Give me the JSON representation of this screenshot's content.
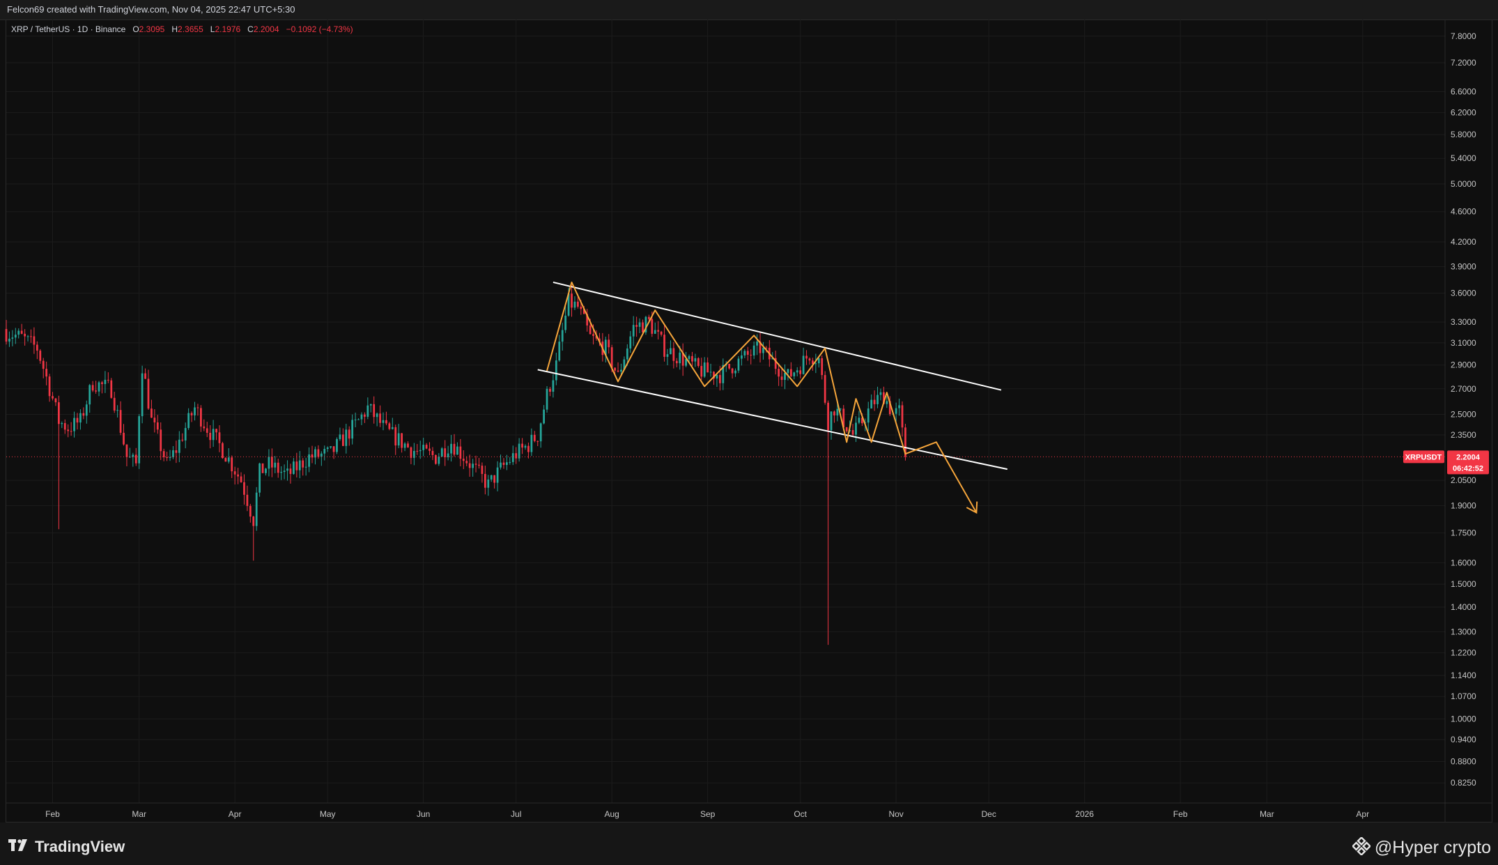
{
  "header": {
    "title": "Felcon69 created with TradingView.com, Nov 04, 2025 22:47 UTC+5:30"
  },
  "legend": {
    "symbol": "XRP / TetherUS · 1D · Binance",
    "o_label": "O",
    "o_value": "2.3095",
    "h_label": "H",
    "h_value": "2.3655",
    "l_label": "L",
    "l_value": "2.1976",
    "c_label": "C",
    "c_value": "2.2004",
    "change": "−0.1092 (−4.73%)"
  },
  "price_tag": {
    "symbol": "XRPUSDT",
    "price": "2.2004",
    "countdown": "06:42:52"
  },
  "footer": {
    "brand": "TradingView",
    "watermark": "@Hyper crypto"
  },
  "colors": {
    "up": "#26a69a",
    "down": "#f23645",
    "pattern": "#f7a63b",
    "channel": "#ffffff",
    "background": "#0f0f0f"
  },
  "icons": {
    "brand_icon": "tradingview-logo-icon",
    "watermark_icon": "binance-diamond-icon"
  },
  "chart_data": {
    "type": "candlestick",
    "y_scale": "log",
    "ylim": [
      0.78,
      8.2
    ],
    "yticks": [
      7.8,
      7.2,
      6.6,
      6.2,
      5.8,
      5.4,
      5.0,
      4.6,
      4.2,
      3.9,
      3.6,
      3.3,
      3.1,
      2.9,
      2.7,
      2.5,
      2.35,
      2.05,
      1.9,
      1.75,
      1.6,
      1.5,
      1.4,
      1.3,
      1.22,
      1.14,
      1.07,
      1.0,
      0.94,
      0.88,
      0.825
    ],
    "ytick_labels": [
      "7.8000",
      "7.2000",
      "6.6000",
      "6.2000",
      "5.8000",
      "5.4000",
      "5.0000",
      "4.6000",
      "4.2000",
      "3.9000",
      "3.6000",
      "3.3000",
      "3.1000",
      "2.9000",
      "2.7000",
      "2.5000",
      "2.3500",
      "2.0500",
      "1.9000",
      "1.7500",
      "1.6000",
      "1.5000",
      "1.4000",
      "1.3000",
      "1.2200",
      "1.1400",
      "1.0700",
      "1.0000",
      "0.9400",
      "0.8800",
      "0.8250"
    ],
    "xticks": [
      "2025-02-01",
      "2025-03-01",
      "2025-04-01",
      "2025-05-01",
      "2025-06-01",
      "2025-07-01",
      "2025-08-01",
      "2025-09-01",
      "2025-10-01",
      "2025-11-01",
      "2025-12-01",
      "2026-01-01",
      "2026-02-01",
      "2026-03-01",
      "2026-04-01"
    ],
    "xtick_labels": [
      "Feb",
      "Mar",
      "Apr",
      "May",
      "Jun",
      "Jul",
      "Aug",
      "Sep",
      "Oct",
      "Nov",
      "Dec",
      "2026",
      "Feb",
      "Mar",
      "Apr"
    ],
    "xlim": [
      "2025-01-17",
      "2026-04-20"
    ],
    "grid": true,
    "last_price": 2.2004,
    "anchors": [
      [
        "2025-01-17",
        3.2
      ],
      [
        "2025-01-22",
        3.15
      ],
      [
        "2025-01-27",
        3.05
      ],
      [
        "2025-02-03",
        2.45
      ],
      [
        "2025-02-06",
        2.4
      ],
      [
        "2025-02-10",
        2.45
      ],
      [
        "2025-02-14",
        2.75
      ],
      [
        "2025-02-20",
        2.7
      ],
      [
        "2025-02-25",
        2.2
      ],
      [
        "2025-02-28",
        2.15
      ],
      [
        "2025-03-02",
        2.9
      ],
      [
        "2025-03-05",
        2.45
      ],
      [
        "2025-03-10",
        2.15
      ],
      [
        "2025-03-13",
        2.25
      ],
      [
        "2025-03-19",
        2.55
      ],
      [
        "2025-03-23",
        2.4
      ],
      [
        "2025-03-28",
        2.25
      ],
      [
        "2025-04-03",
        2.05
      ],
      [
        "2025-04-07",
        1.82
      ],
      [
        "2025-04-09",
        2.1
      ],
      [
        "2025-04-12",
        2.15
      ],
      [
        "2025-04-18",
        2.08
      ],
      [
        "2025-04-25",
        2.2
      ],
      [
        "2025-05-02",
        2.22
      ],
      [
        "2025-05-11",
        2.45
      ],
      [
        "2025-05-14",
        2.55
      ],
      [
        "2025-05-20",
        2.38
      ],
      [
        "2025-05-28",
        2.25
      ],
      [
        "2025-06-05",
        2.2
      ],
      [
        "2025-06-10",
        2.3
      ],
      [
        "2025-06-15",
        2.18
      ],
      [
        "2025-06-22",
        2.02
      ],
      [
        "2025-06-26",
        2.12
      ],
      [
        "2025-07-01",
        2.22
      ],
      [
        "2025-07-05",
        2.28
      ],
      [
        "2025-07-08",
        2.35
      ],
      [
        "2025-07-11",
        2.65
      ],
      [
        "2025-07-14",
        2.9
      ],
      [
        "2025-07-18",
        3.5
      ],
      [
        "2025-07-21",
        3.45
      ],
      [
        "2025-07-25",
        3.15
      ],
      [
        "2025-07-30",
        3.05
      ],
      [
        "2025-08-03",
        2.8
      ],
      [
        "2025-08-08",
        3.25
      ],
      [
        "2025-08-13",
        3.3
      ],
      [
        "2025-08-18",
        3.05
      ],
      [
        "2025-08-24",
        2.95
      ],
      [
        "2025-08-30",
        2.85
      ],
      [
        "2025-09-05",
        2.82
      ],
      [
        "2025-09-12",
        2.95
      ],
      [
        "2025-09-18",
        3.05
      ],
      [
        "2025-09-23",
        2.9
      ],
      [
        "2025-09-27",
        2.8
      ],
      [
        "2025-10-01",
        2.9
      ],
      [
        "2025-10-04",
        3.0
      ],
      [
        "2025-10-07",
        2.95
      ],
      [
        "2025-10-10",
        2.45
      ],
      [
        "2025-10-12",
        2.55
      ],
      [
        "2025-10-15",
        2.45
      ],
      [
        "2025-10-18",
        2.35
      ],
      [
        "2025-10-21",
        2.45
      ],
      [
        "2025-10-25",
        2.6
      ],
      [
        "2025-10-28",
        2.65
      ],
      [
        "2025-10-31",
        2.5
      ],
      [
        "2025-11-02",
        2.52
      ],
      [
        "2025-11-04",
        2.2
      ]
    ],
    "extremes": [
      {
        "date": "2025-02-03",
        "low": 1.77
      },
      {
        "date": "2025-04-07",
        "low": 1.61
      },
      {
        "date": "2025-07-18",
        "high": 3.66
      },
      {
        "date": "2025-10-10",
        "low": 1.25
      }
    ],
    "channel_upper": [
      [
        "2025-07-13",
        3.72
      ],
      [
        "2025-12-05",
        2.69
      ]
    ],
    "channel_lower": [
      [
        "2025-07-08",
        2.86
      ],
      [
        "2025-12-07",
        2.12
      ]
    ],
    "pattern_path": [
      [
        "2025-07-11",
        2.85
      ],
      [
        "2025-07-19",
        3.72
      ],
      [
        "2025-08-03",
        2.76
      ],
      [
        "2025-08-15",
        3.42
      ],
      [
        "2025-08-31",
        2.72
      ],
      [
        "2025-09-16",
        3.17
      ],
      [
        "2025-09-30",
        2.72
      ],
      [
        "2025-10-09",
        3.05
      ],
      [
        "2025-10-16",
        2.3
      ],
      [
        "2025-10-19",
        2.62
      ],
      [
        "2025-10-24",
        2.3
      ],
      [
        "2025-10-29",
        2.67
      ],
      [
        "2025-11-04",
        2.22
      ],
      [
        "2025-11-14",
        2.3
      ],
      [
        "2025-11-27",
        1.86
      ]
    ]
  }
}
